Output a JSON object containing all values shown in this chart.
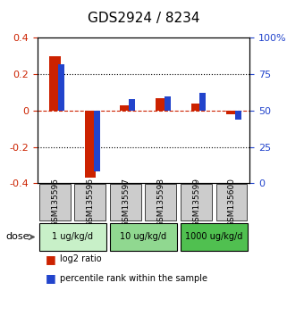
{
  "title": "GDS2924 / 8234",
  "samples": [
    "GSM135595",
    "GSM135596",
    "GSM135597",
    "GSM135598",
    "GSM135599",
    "GSM135600"
  ],
  "log2_ratio": [
    0.3,
    -0.37,
    0.03,
    0.07,
    0.04,
    -0.02
  ],
  "percentile": [
    82,
    8,
    58,
    60,
    62,
    44
  ],
  "ylim_left": [
    -0.4,
    0.4
  ],
  "ylim_right": [
    0,
    100
  ],
  "yticks_left": [
    -0.4,
    -0.2,
    0.0,
    0.2,
    0.4
  ],
  "yticks_right": [
    0,
    25,
    50,
    75,
    100
  ],
  "ytick_labels_left": [
    "-0.4",
    "-0.2",
    "0",
    "0.2",
    "0.4"
  ],
  "ytick_labels_right": [
    "0",
    "25",
    "50",
    "75",
    "100%"
  ],
  "dose_groups": [
    {
      "label": "1 ug/kg/d",
      "color": "#c8f0c8",
      "indices": [
        0,
        1
      ]
    },
    {
      "label": "10 ug/kg/d",
      "color": "#90d890",
      "indices": [
        2,
        3
      ]
    },
    {
      "label": "1000 ug/kg/d",
      "color": "#50c050",
      "indices": [
        4,
        5
      ]
    }
  ],
  "bar_width": 0.35,
  "red_color": "#cc2200",
  "blue_color": "#2244cc",
  "dashed_red_color": "#cc2200",
  "dashed_black_color": "#000000",
  "sample_bg_color": "#cccccc",
  "legend_red_label": "log2 ratio",
  "legend_blue_label": "percentile rank within the sample",
  "dose_arrow_text": "dose"
}
